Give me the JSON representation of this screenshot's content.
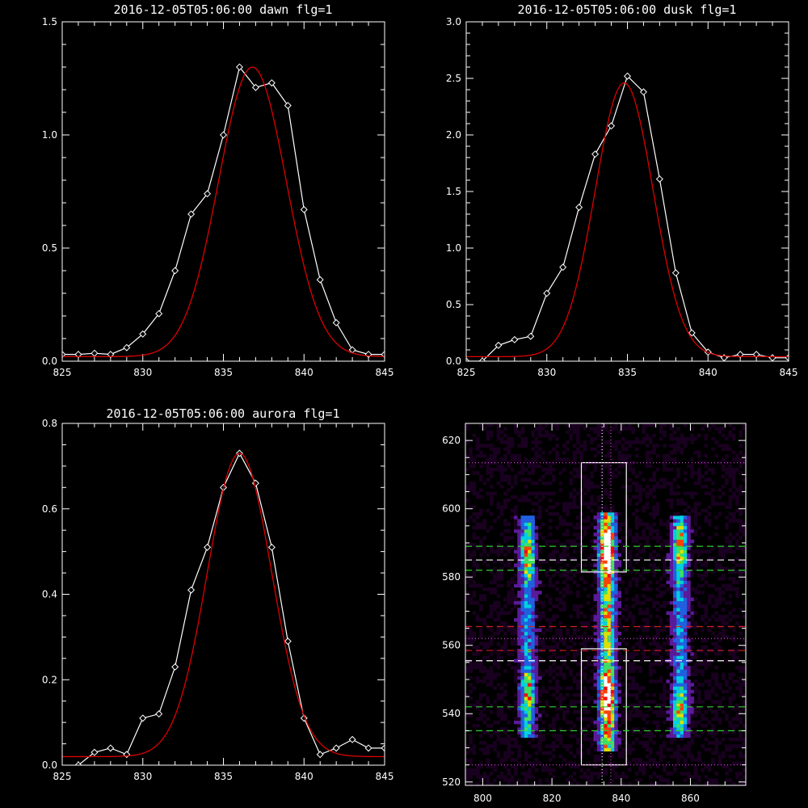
{
  "chart_data": [
    {
      "type": "line",
      "title": "2016-12-05T05:06:00 dawn flg=1",
      "xlim": [
        825,
        845
      ],
      "ylim": [
        0,
        1.5
      ],
      "xticks": [
        "825",
        "830",
        "835",
        "840",
        "845"
      ],
      "yticks": [
        "0.0",
        "0.5",
        "1.0",
        "1.5"
      ],
      "series": [
        {
          "kind": "observed",
          "color": "#ffffff",
          "x": [
            825,
            826,
            827,
            828,
            829,
            830,
            831,
            832,
            833,
            834,
            835,
            836,
            837,
            838,
            839,
            840,
            841,
            842,
            843,
            844,
            845
          ],
          "y": [
            0.03,
            0.03,
            0.035,
            0.03,
            0.06,
            0.12,
            0.21,
            0.4,
            0.65,
            0.74,
            1.0,
            1.3,
            1.21,
            1.23,
            1.13,
            0.67,
            0.36,
            0.17,
            0.05,
            0.03,
            0.03
          ]
        },
        {
          "kind": "fit",
          "color": "#d00000",
          "model": "gaussian",
          "amplitude": 1.28,
          "center": 836.8,
          "sigma": 2.1,
          "offset": 0.02
        }
      ]
    },
    {
      "type": "line",
      "title": "2016-12-05T05:06:00 dusk flg=1",
      "xlim": [
        825,
        845
      ],
      "ylim": [
        0,
        3.0
      ],
      "xticks": [
        "825",
        "830",
        "835",
        "840",
        "845"
      ],
      "yticks": [
        "0.0",
        "0.5",
        "1.0",
        "1.5",
        "2.0",
        "2.5",
        "3.0"
      ],
      "series": [
        {
          "kind": "observed",
          "color": "#ffffff",
          "x": [
            825,
            826,
            827,
            828,
            829,
            830,
            831,
            832,
            833,
            834,
            835,
            836,
            837,
            838,
            839,
            840,
            841,
            842,
            843,
            844,
            845
          ],
          "y": [
            0.0,
            0.0,
            0.14,
            0.19,
            0.22,
            0.6,
            0.83,
            1.36,
            1.83,
            2.08,
            2.52,
            2.38,
            1.61,
            0.78,
            0.25,
            0.08,
            0.03,
            0.06,
            0.06,
            0.03,
            0.03
          ]
        },
        {
          "kind": "fit",
          "color": "#d00000",
          "model": "gaussian",
          "amplitude": 2.42,
          "center": 834.8,
          "sigma": 1.8,
          "offset": 0.04
        }
      ]
    },
    {
      "type": "line",
      "title": "2016-12-05T05:06:00 aurora flg=1",
      "xlim": [
        825,
        845
      ],
      "ylim": [
        0,
        0.8
      ],
      "xticks": [
        "825",
        "830",
        "835",
        "840",
        "845"
      ],
      "yticks": [
        "0.0",
        "0.2",
        "0.4",
        "0.6",
        "0.8"
      ],
      "series": [
        {
          "kind": "observed",
          "color": "#ffffff",
          "x": [
            826,
            827,
            828,
            829,
            830,
            831,
            832,
            833,
            834,
            835,
            836,
            837,
            838,
            839,
            840,
            841,
            842,
            843,
            844,
            845
          ],
          "y": [
            0.0,
            0.03,
            0.04,
            0.025,
            0.11,
            0.12,
            0.23,
            0.41,
            0.51,
            0.65,
            0.73,
            0.66,
            0.51,
            0.29,
            0.11,
            0.025,
            0.04,
            0.06,
            0.04,
            0.04
          ]
        },
        {
          "kind": "fit",
          "color": "#d00000",
          "model": "gaussian",
          "amplitude": 0.71,
          "center": 836.0,
          "sigma": 2.0,
          "offset": 0.02
        }
      ]
    },
    {
      "type": "heatmap",
      "xlim": [
        795,
        876
      ],
      "ylim": [
        519,
        625
      ],
      "xticks": [
        "800",
        "820",
        "840",
        "860"
      ],
      "yticks": [
        "520",
        "540",
        "560",
        "580",
        "600",
        "620"
      ],
      "colormap": [
        "#1a0020",
        "#5a1a9a",
        "#2060e0",
        "#00d0e0",
        "#40e060",
        "#e0e000",
        "#ff4000",
        "#ff0000",
        "#ffffff"
      ],
      "emission_bands": [
        {
          "x": 813,
          "y0": 533,
          "y1": 597,
          "peaks": [
            586,
            545
          ]
        },
        {
          "x": 836,
          "y0": 529,
          "y1": 598,
          "peaks": [
            587,
            544
          ]
        },
        {
          "x": 857,
          "y0": 533,
          "y1": 597,
          "peaks": [
            589,
            541
          ]
        }
      ],
      "boxes": [
        {
          "x0": 828.5,
          "x1": 841.5,
          "y0": 581.5,
          "y1": 613.5
        },
        {
          "x0": 828.5,
          "x1": 841.5,
          "y0": 525,
          "y1": 559
        }
      ],
      "hlines": [
        {
          "y": 613.5,
          "color": "#d040d0",
          "style": "dotted"
        },
        {
          "y": 525,
          "color": "#d040d0",
          "style": "dotted"
        },
        {
          "y": 589,
          "color": "#30d030",
          "style": "dashed"
        },
        {
          "y": 585,
          "color": "#ffffff",
          "style": "dashed"
        },
        {
          "y": 582,
          "color": "#30d030",
          "style": "dashed"
        },
        {
          "y": 565.5,
          "color": "#d02020",
          "style": "dashed"
        },
        {
          "y": 562,
          "color": "#d040d0",
          "style": "dotted"
        },
        {
          "y": 558.5,
          "color": "#d02020",
          "style": "dashed"
        },
        {
          "y": 555.5,
          "color": "#ffffff",
          "style": "dashed"
        },
        {
          "y": 542,
          "color": "#30d030",
          "style": "dashed"
        },
        {
          "y": 535,
          "color": "#30d030",
          "style": "dashed"
        }
      ],
      "vlines": [
        {
          "x": 834.5,
          "color": "#ffffff",
          "style": "dotted"
        },
        {
          "x": 837,
          "color": "#d040d0",
          "style": "dotted"
        }
      ]
    }
  ]
}
